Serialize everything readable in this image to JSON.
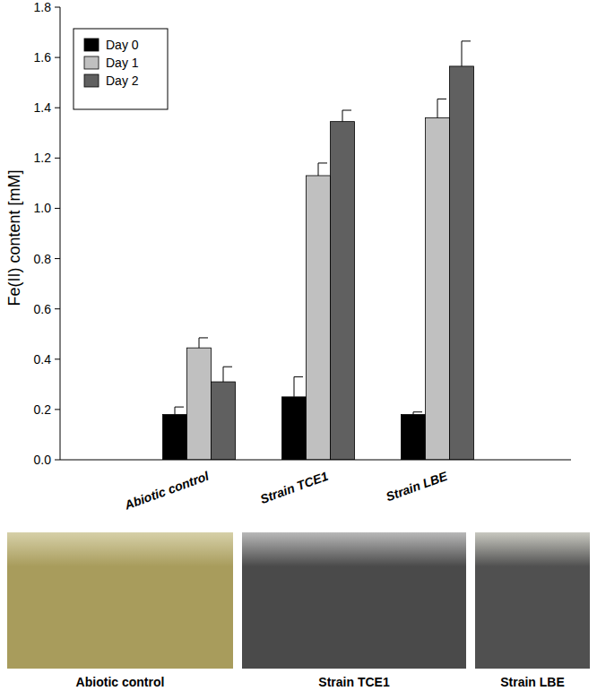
{
  "chart_data": {
    "type": "bar",
    "y_label": "Fe(II) content [mM]",
    "categories": [
      "Abiotic control",
      "Strain TCE1",
      "Strain LBE"
    ],
    "series": [
      {
        "name": "Day 0",
        "color": "#000000",
        "values": [
          0.18,
          0.25,
          0.18
        ],
        "errors": [
          0.03,
          0.08,
          0.01
        ]
      },
      {
        "name": "Day 1",
        "color": "#c0c0c0",
        "values": [
          0.445,
          1.13,
          1.36
        ],
        "errors": [
          0.04,
          0.05,
          0.075
        ]
      },
      {
        "name": "Day 2",
        "color": "#606060",
        "values": [
          0.31,
          1.345,
          1.565
        ],
        "errors": [
          0.06,
          0.045,
          0.1
        ]
      }
    ],
    "ylim": [
      0,
      1.8
    ],
    "yticks": [
      {
        "value": 0,
        "label": "0.0"
      },
      0.2,
      0.4,
      0.6,
      0.8,
      {
        "value": 1,
        "label": "1.0"
      },
      1.2,
      1.4,
      1.6,
      1.8
    ],
    "legend": "upper left",
    "grid": false
  },
  "photos": [
    {
      "label": "Abiotic control"
    },
    {
      "label": "Strain TCE1"
    },
    {
      "label": "Strain LBE"
    }
  ]
}
